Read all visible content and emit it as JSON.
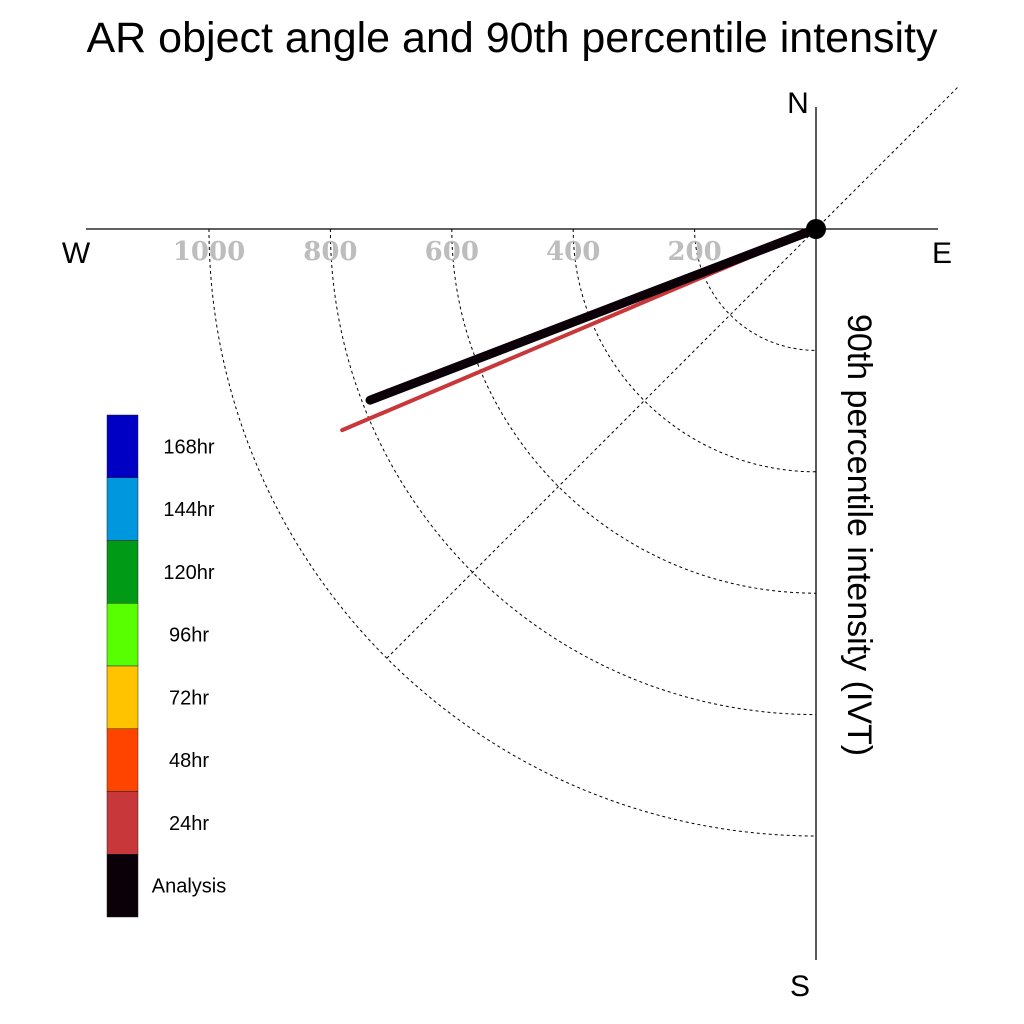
{
  "chart_data": {
    "type": "polar-vector",
    "title": "AR object angle and 90th percentile intensity",
    "radial_axis_label": "90th percentile intensity (IVT)",
    "radial_ticks": [
      200,
      400,
      600,
      800,
      1000
    ],
    "radial_max": 1000,
    "compass": {
      "north": "N",
      "east": "E",
      "south": "S",
      "west": "W"
    },
    "legend": [
      {
        "label": "168hr",
        "color": "#0000c4"
      },
      {
        "label": "144hr",
        "color": "#0097df"
      },
      {
        "label": "120hr",
        "color": "#009a17"
      },
      {
        "label": "96hr",
        "color": "#57ff00"
      },
      {
        "label": "72hr",
        "color": "#ffc300"
      },
      {
        "label": "48hr",
        "color": "#ff4400"
      },
      {
        "label": "24hr",
        "color": "#c8383b"
      },
      {
        "label": "Analysis",
        "color": "#0b0008"
      }
    ],
    "series": [
      {
        "name": "24hr",
        "angle_deg": 247,
        "intensity": 848,
        "color": "#c8383b"
      },
      {
        "name": "Analysis",
        "angle_deg": 249,
        "intensity": 787,
        "color": "#0b0008"
      }
    ]
  }
}
